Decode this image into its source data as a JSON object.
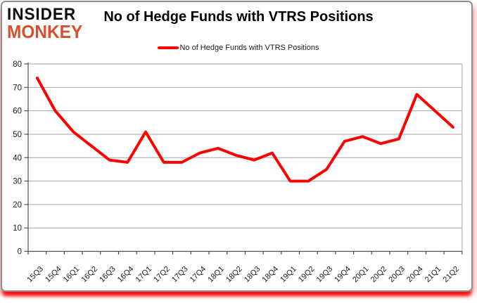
{
  "brand": {
    "line1": "INSIDER",
    "line2": "MONKEY",
    "monkey_color": "#d7502e"
  },
  "header": {
    "title": "No of Hedge Funds with VTRS Positions"
  },
  "legend": {
    "label": "No of Hedge Funds with VTRS Positions",
    "line_color": "#ff0000"
  },
  "chart_data": {
    "type": "line",
    "title": "No of Hedge Funds with VTRS Positions",
    "series_name": "No of Hedge Funds with VTRS Positions",
    "categories": [
      "15Q3",
      "15Q4",
      "16Q1",
      "16Q2",
      "16Q3",
      "16Q4",
      "17Q1",
      "17Q2",
      "17Q3",
      "17Q4",
      "18Q1",
      "18Q2",
      "18Q3",
      "18Q4",
      "19Q1",
      "19Q2",
      "19Q3",
      "19Q4",
      "20Q1",
      "20Q2",
      "20Q3",
      "20Q4",
      "21Q1",
      "21Q2"
    ],
    "values": [
      74,
      60,
      51,
      45,
      39,
      38,
      51,
      38,
      38,
      42,
      44,
      41,
      39,
      42,
      30,
      30,
      35,
      47,
      49,
      46,
      48,
      67,
      60,
      53
    ],
    "ylim": [
      0,
      80
    ],
    "ytick_step": 10,
    "grid": true,
    "legend_position": "top",
    "line_color": "#ff0000",
    "gridline_color": "#a6a6a6",
    "axis_color": "#4d4d4d",
    "label_color": "#1a1a1a"
  }
}
